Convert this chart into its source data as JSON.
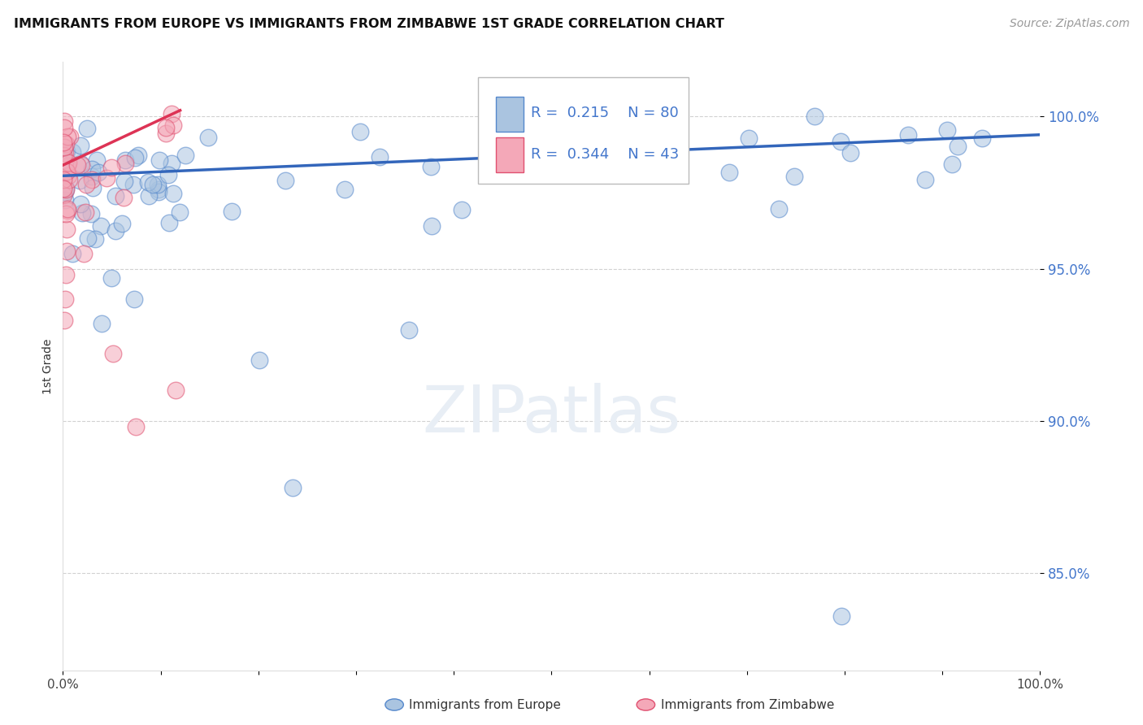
{
  "title": "IMMIGRANTS FROM EUROPE VS IMMIGRANTS FROM ZIMBABWE 1ST GRADE CORRELATION CHART",
  "source": "Source: ZipAtlas.com",
  "ylabel": "1st Grade",
  "xlim": [
    0.0,
    1.0
  ],
  "ylim": [
    0.818,
    1.018
  ],
  "ytick_positions": [
    0.85,
    0.9,
    0.95,
    1.0
  ],
  "ytick_labels": [
    "85.0%",
    "90.0%",
    "95.0%",
    "100.0%"
  ],
  "legend_europe_R": 0.215,
  "legend_europe_N": 80,
  "legend_zimbabwe_R": 0.344,
  "legend_zimbabwe_N": 43,
  "europe_color": "#aac4e0",
  "zimbabwe_color": "#f4a8b8",
  "europe_edge_color": "#5588cc",
  "zimbabwe_edge_color": "#e05070",
  "europe_line_color": "#3366bb",
  "zimbabwe_line_color": "#dd3355",
  "watermark_color": "#e8eef5",
  "background_color": "#ffffff",
  "grid_color": "#cccccc",
  "tick_color": "#4477cc",
  "title_color": "#111111",
  "source_color": "#999999"
}
